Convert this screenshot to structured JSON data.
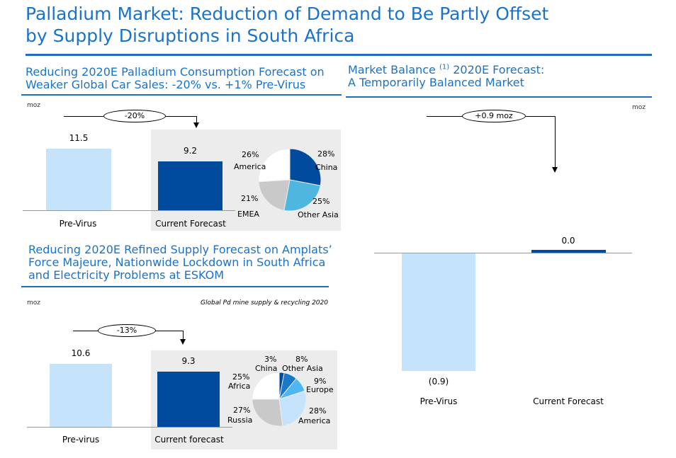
{
  "title_line1": "Palladium Market: Reduction of Demand to Be Partly Offset",
  "title_line2": "by Supply Disruptions in South Africa",
  "colors": {
    "accent": "#1a73c9",
    "light_bar": "#c5e3fb",
    "dark_bar": "#004b9e"
  },
  "chart_data": [
    {
      "type": "bar",
      "title_line1": "Reducing 2020E Palladium Consumption Forecast on",
      "title_line2": "Weaker Global Car Sales: -20% vs. +1% Pre-Virus",
      "unit": "moz",
      "categories": [
        "Pre-Virus",
        "Current Forecast"
      ],
      "values": [
        11.5,
        9.2
      ],
      "value_labels": [
        "11.5",
        "9.2"
      ],
      "change_label": "-20%",
      "pie": {
        "slices": [
          {
            "name": "China",
            "value": 28,
            "pct_label": "28%",
            "name_label": "China",
            "color": "#004b9e"
          },
          {
            "name": "Other Asia",
            "value": 25,
            "pct_label": "25%",
            "name_label": "Other Asia",
            "color": "#4fb6e0"
          },
          {
            "name": "EMEA",
            "value": 21,
            "pct_label": "21%",
            "name_label": "EMEA",
            "color": "#c9c9c9"
          },
          {
            "name": "America",
            "value": 26,
            "pct_label": "26%",
            "name_label": "America",
            "color": "#ffffff"
          }
        ]
      }
    },
    {
      "type": "bar",
      "title_line1": "Reducing 2020E Refined Supply Forecast on Amplats’",
      "title_line2": "Force Majeure, Nationwide Lockdown in South Africa",
      "title_line3": "and Electricity Problems at ESKOM",
      "unit": "moz",
      "source_note": "Global Pd mine supply & recycling 2020",
      "categories": [
        "Pre-virus",
        "Current forecast"
      ],
      "values": [
        10.6,
        9.3
      ],
      "value_labels": [
        "10.6",
        "9.3"
      ],
      "change_label": "-13%",
      "pie": {
        "slices": [
          {
            "name": "China",
            "value": 3,
            "pct_label": "3%",
            "name_label": "China",
            "color": "#004b9e"
          },
          {
            "name": "Other Asia",
            "value": 8,
            "pct_label": "8%",
            "name_label": "Other Asia",
            "color": "#1a78c8"
          },
          {
            "name": "Europe",
            "value": 9,
            "pct_label": "9%",
            "name_label": "Europe",
            "color": "#4fb6f2"
          },
          {
            "name": "America",
            "value": 28,
            "pct_label": "28%",
            "name_label": "America",
            "color": "#c5e3fb"
          },
          {
            "name": "Russia",
            "value": 27,
            "pct_label": "27%",
            "name_label": "Russia",
            "color": "#c9c9c9"
          },
          {
            "name": "Africa",
            "value": 25,
            "pct_label": "25%",
            "name_label": "Africa",
            "color": "#ffffff"
          }
        ]
      }
    },
    {
      "type": "bar",
      "title_line1_pre": "Market Balance ",
      "title_sup": "(1)",
      "title_line1_post": " 2020E Forecast:",
      "title_line2": "A Temporarily Balanced Market",
      "unit": "moz",
      "categories": [
        "Pre-Virus",
        "Current Forecast"
      ],
      "values": [
        -0.9,
        0.0
      ],
      "value_labels": [
        "(0.9)",
        "0.0"
      ],
      "change_label": "+0.9 moz"
    }
  ]
}
